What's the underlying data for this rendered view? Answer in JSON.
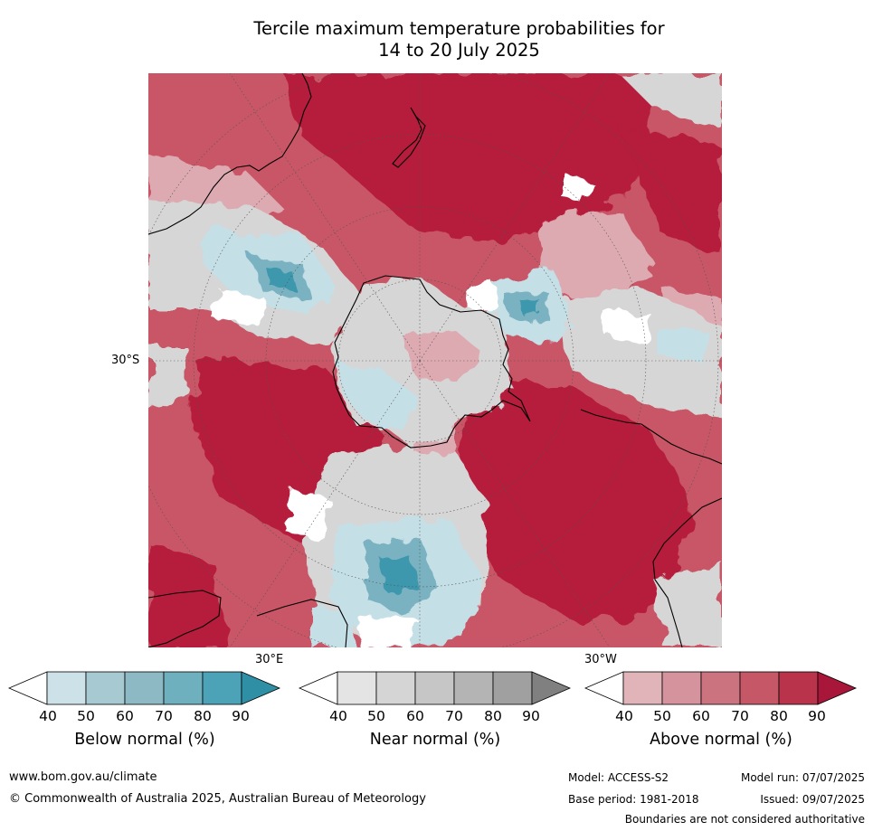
{
  "title": {
    "line1": "Tercile maximum temperature probabilities for",
    "line2": "14 to 20 July 2025"
  },
  "map": {
    "lat_label": "30°S",
    "lon_labels": {
      "east": "30°E",
      "west": "30°W"
    },
    "colors": {
      "above_strong": "#b61d3a",
      "above_mid": "#c95666",
      "above_light": "#deaab2",
      "near": "#d6d6d6",
      "below_light": "#c5dfe6",
      "below_mid": "#7ab2c1",
      "below_strong": "#3c97ad",
      "coast": "#000000"
    }
  },
  "colorbars": [
    {
      "id": "below",
      "title": "Below normal (%)",
      "ticks": [
        "40",
        "50",
        "60",
        "70",
        "80",
        "90"
      ],
      "colors": [
        "#ffffff",
        "#cde2e8",
        "#a7c9d1",
        "#8db9c5",
        "#6fb0bf",
        "#4ca3b7",
        "#2f8fa4"
      ]
    },
    {
      "id": "near",
      "title": "Near normal (%)",
      "ticks": [
        "40",
        "50",
        "60",
        "70",
        "80",
        "90"
      ],
      "colors": [
        "#ffffff",
        "#e4e4e4",
        "#d5d5d5",
        "#c6c6c6",
        "#b4b4b4",
        "#a0a0a0",
        "#808080"
      ]
    },
    {
      "id": "above",
      "title": "Above normal (%)",
      "ticks": [
        "40",
        "50",
        "60",
        "70",
        "80",
        "90"
      ],
      "colors": [
        "#ffffff",
        "#e1b4ba",
        "#d5949d",
        "#cb737f",
        "#c55766",
        "#b9344a",
        "#a8173a"
      ]
    }
  ],
  "footer": {
    "website": "www.bom.gov.au/climate",
    "copyright": "© Commonwealth of Australia 2025, Australian Bureau of Meteorology",
    "model": "Model: ACCESS-S2",
    "model_run": "Model run: 07/07/2025",
    "base_period": "Base period: 1981-2018",
    "issued": "Issued: 09/07/2025",
    "disclaimer": "Boundaries are not considered authoritative"
  }
}
